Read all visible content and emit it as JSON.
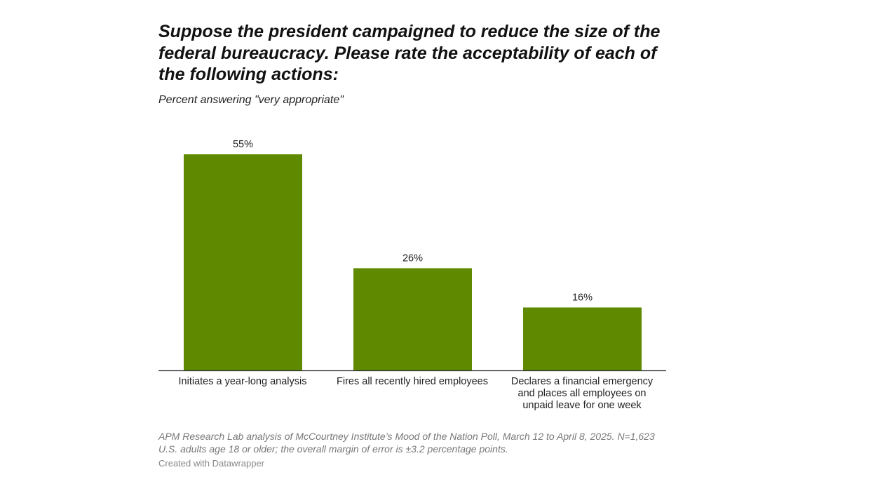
{
  "chart_data": {
    "type": "bar",
    "title": "Suppose the president campaigned to reduce the size of the federal bureaucracy. Please rate the acceptability of each of the following actions:",
    "subtitle": "Percent answering \"very appropriate\"",
    "categories": [
      "Initiates a year-long analysis",
      "Fires all recently hired employees",
      "Declares a financial emergency and places all employees on unpaid leave for one week"
    ],
    "values": [
      55,
      26,
      16
    ],
    "value_labels": [
      "55%",
      "26%",
      "16%"
    ],
    "ylim": [
      0,
      55
    ],
    "grid": false,
    "bar_color": "#5f8a00",
    "notes": "APM Research Lab analysis of McCourtney Institute’s Mood of the Nation Poll, March 12 to April 8, 2025. N=1,623 U.S. adults age 18 or older; the overall margin of error is ±3.2 percentage points.",
    "credit": "Created with Datawrapper"
  }
}
